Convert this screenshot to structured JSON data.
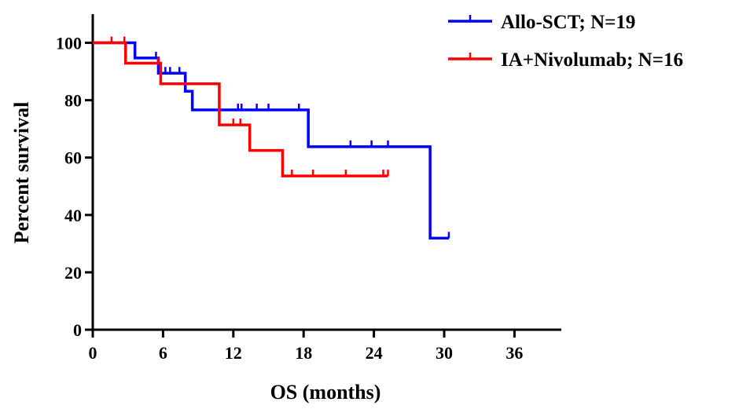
{
  "chart_data": {
    "type": "line",
    "subtype": "kaplan-meier",
    "title": "",
    "xlabel": "OS (months)",
    "ylabel": "Percent survival",
    "xlim": [
      0,
      40
    ],
    "ylim": [
      0,
      110
    ],
    "x_ticks": [
      0,
      6,
      12,
      18,
      24,
      30,
      36
    ],
    "y_ticks": [
      0,
      20,
      40,
      60,
      80,
      100
    ],
    "grid": false,
    "legend_position": "top-right",
    "series": [
      {
        "name": "Allo-SCT; N=19",
        "color": "#0000ff",
        "steps": [
          [
            0,
            100
          ],
          [
            3.6,
            94.7
          ],
          [
            5.6,
            89.4
          ],
          [
            7.9,
            83.1
          ],
          [
            8.5,
            76.6
          ],
          [
            18.4,
            63.8
          ],
          [
            28.8,
            31.9
          ],
          [
            30.4,
            31.9
          ]
        ],
        "censored": [
          [
            5.4,
            94.7
          ],
          [
            6.2,
            89.4
          ],
          [
            6.6,
            89.4
          ],
          [
            7.4,
            89.4
          ],
          [
            12.4,
            76.6
          ],
          [
            12.7,
            76.6
          ],
          [
            14.0,
            76.6
          ],
          [
            15.0,
            76.6
          ],
          [
            17.6,
            76.6
          ],
          [
            22.0,
            63.8
          ],
          [
            23.8,
            63.8
          ],
          [
            25.2,
            63.8
          ],
          [
            30.4,
            31.9
          ]
        ]
      },
      {
        "name": "IA+Nivolumab; N=16",
        "color": "#ff0000",
        "steps": [
          [
            0,
            100
          ],
          [
            2.8,
            92.9
          ],
          [
            5.8,
            85.7
          ],
          [
            10.8,
            71.4
          ],
          [
            13.4,
            62.5
          ],
          [
            16.2,
            53.6
          ],
          [
            25.2,
            53.6
          ]
        ],
        "censored": [
          [
            1.6,
            100
          ],
          [
            2.7,
            100
          ],
          [
            5.6,
            92.9
          ],
          [
            10.8,
            77.5
          ],
          [
            12.0,
            71.4
          ],
          [
            12.6,
            71.4
          ],
          [
            17.0,
            53.6
          ],
          [
            18.8,
            53.6
          ],
          [
            21.6,
            53.6
          ],
          [
            24.8,
            53.6
          ],
          [
            25.2,
            53.6
          ]
        ]
      }
    ]
  }
}
